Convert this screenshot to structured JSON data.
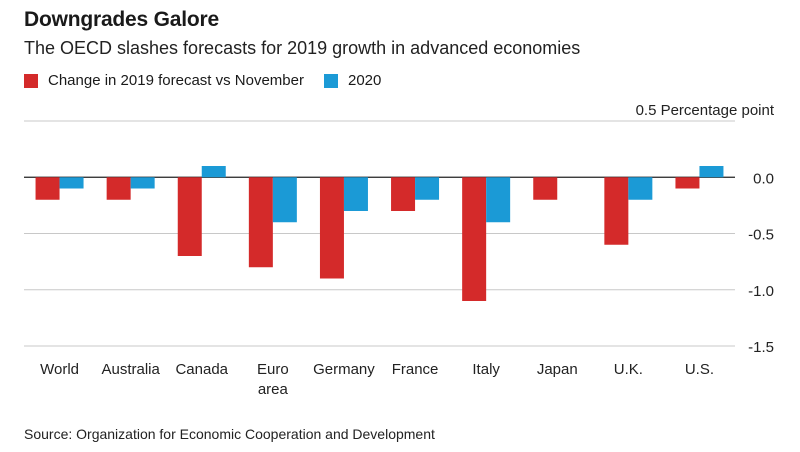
{
  "title": "Downgrades Galore",
  "subtitle": "The OECD slashes forecasts for 2019 growth in advanced economies",
  "source": "Source: Organization for Economic Cooperation and Development",
  "colors": {
    "series_2019": "#d42a2a",
    "series_2020": "#1b9ad6",
    "grid": "#c8c8c8",
    "zero_line": "#222222"
  },
  "chart_data": {
    "type": "bar",
    "categories": [
      "World",
      "Australia",
      "Canada",
      "Euro area",
      "Germany",
      "France",
      "Italy",
      "Japan",
      "U.K.",
      "U.S."
    ],
    "category_lines": [
      [
        "World"
      ],
      [
        "Australia"
      ],
      [
        "Canada"
      ],
      [
        "Euro",
        "area"
      ],
      [
        "Germany"
      ],
      [
        "France"
      ],
      [
        "Italy"
      ],
      [
        "Japan"
      ],
      [
        "U.K."
      ],
      [
        "U.S."
      ]
    ],
    "series": [
      {
        "name": "Change in 2019 forecast vs November",
        "values": [
          -0.2,
          -0.2,
          -0.7,
          -0.8,
          -0.9,
          -0.3,
          -1.1,
          -0.2,
          -0.6,
          -0.1
        ]
      },
      {
        "name": "2020",
        "values": [
          -0.1,
          -0.1,
          0.1,
          -0.4,
          -0.3,
          -0.2,
          -0.4,
          null,
          -0.2,
          0.1
        ]
      }
    ],
    "ylim": [
      -1.5,
      0.5
    ],
    "yticks": [
      0.5,
      0.0,
      -0.5,
      -1.0,
      -1.5
    ],
    "ytick_labels": [
      "0.5 Percentage point",
      "0.0",
      "-0.5",
      "-1.0",
      "-1.5"
    ],
    "grid": true,
    "legend_position": "top-left"
  }
}
